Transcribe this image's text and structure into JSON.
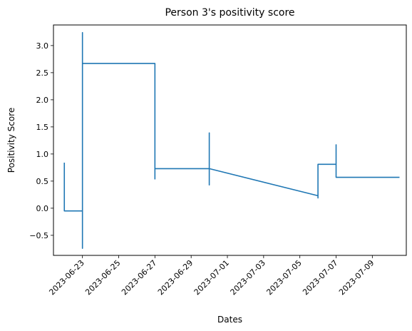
{
  "chart_data": {
    "type": "line",
    "title": "Person 3's positivity score",
    "xlabel": "Dates",
    "ylabel": "Positivity Score",
    "xlim": [
      "2023-06-21T09:36",
      "2023-07-10T21:00"
    ],
    "ylim": [
      -0.87,
      3.38
    ],
    "x_ticks": [
      "2023-06-23",
      "2023-06-25",
      "2023-06-27",
      "2023-06-29",
      "2023-07-01",
      "2023-07-03",
      "2023-07-05",
      "2023-07-07",
      "2023-07-09"
    ],
    "y_ticks": [
      -0.5,
      0.0,
      0.5,
      1.0,
      1.5,
      2.0,
      2.5,
      3.0
    ],
    "y_tick_labels": [
      "−0.5",
      "0.0",
      "0.5",
      "1.0",
      "1.5",
      "2.0",
      "2.5",
      "3.0"
    ],
    "grid": false,
    "legend": "none",
    "line_color": "#1f77b4",
    "series": [
      {
        "x": [
          "2023-06-22T00:00",
          "2023-06-22T00:00",
          "2023-06-22T00:00",
          "2023-06-23T00:00",
          "2023-06-23T00:00",
          "2023-06-23T00:00",
          "2023-06-23T00:00",
          "2023-06-27T00:00",
          "2023-06-27T00:00",
          "2023-06-27T00:00",
          "2023-06-27T00:00",
          "2023-06-30T00:00",
          "2023-06-30T00:00",
          "2023-06-30T00:00",
          "2023-06-30T00:00",
          "2023-07-06T00:00",
          "2023-07-06T00:00",
          "2023-07-06T00:00",
          "2023-07-07T00:00",
          "2023-07-07T00:00",
          "2023-07-07T00:00",
          "2023-07-10T12:00"
        ],
        "y": [
          0.84,
          -0.05,
          -0.05,
          -0.05,
          -0.74,
          3.24,
          2.67,
          2.67,
          0.54,
          0.78,
          0.73,
          0.73,
          0.43,
          1.39,
          0.73,
          0.23,
          0.19,
          0.81,
          0.81,
          1.17,
          0.57,
          0.57
        ]
      }
    ]
  }
}
